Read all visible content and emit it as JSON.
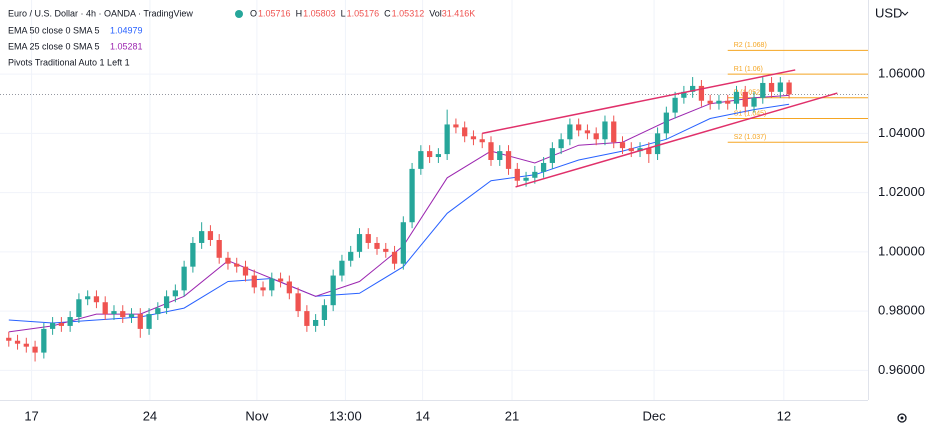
{
  "chart_data": {
    "type": "candlestick",
    "title": "Euro / U.S. Dollar · 4h · OANDA · TradingView",
    "ohlc_labels": [
      "O",
      "H",
      "L",
      "C"
    ],
    "volume_label": "Vol",
    "volume": "31.416K",
    "currency": "USD",
    "up_color": "#26a69a",
    "down_color": "#ef5350",
    "open": [
      0.971,
      0.97,
      0.969,
      0.968,
      0.966,
      0.974,
      0.976,
      0.975,
      0.978,
      0.984,
      0.985,
      0.983,
      0.979,
      0.98,
      0.978,
      0.979,
      0.974,
      0.979,
      0.981,
      0.985,
      0.987,
      0.995,
      1.003,
      1.007,
      1.004,
      0.998,
      0.996,
      0.995,
      0.992,
      0.988,
      0.987,
      0.991,
      0.99,
      0.986,
      0.98,
      0.975,
      0.977,
      0.982,
      0.992,
      0.997,
      1.0,
      1.006,
      1.003,
      1.001,
      1.0,
      0.996,
      1.01,
      1.028,
      1.034,
      1.032,
      1.033,
      1.043,
      1.042,
      1.039,
      1.038,
      1.037,
      1.031,
      1.034,
      1.028,
      1.024,
      1.025,
      1.027,
      1.03,
      1.035,
      1.038,
      1.043,
      1.041,
      1.04,
      1.038,
      1.044,
      1.037,
      1.035,
      1.034,
      1.035,
      1.033,
      1.04,
      1.047,
      1.052,
      1.054,
      1.056,
      1.051,
      1.05,
      1.051,
      1.05,
      1.054,
      1.049,
      1.052,
      1.057,
      1.054,
      1.05716
    ],
    "high": [
      0.973,
      0.972,
      0.971,
      0.97,
      0.976,
      0.978,
      0.978,
      0.98,
      0.986,
      0.987,
      0.987,
      0.985,
      0.982,
      0.982,
      0.981,
      0.981,
      0.981,
      0.983,
      0.987,
      0.989,
      0.997,
      1.005,
      1.01,
      1.009,
      1.006,
      1.0,
      0.998,
      0.997,
      0.994,
      0.99,
      0.993,
      0.993,
      0.992,
      0.988,
      0.982,
      0.979,
      0.984,
      0.994,
      0.999,
      1.002,
      1.008,
      1.008,
      1.005,
      1.003,
      1.002,
      1.012,
      1.03,
      1.036,
      1.036,
      1.035,
      1.048,
      1.045,
      1.044,
      1.041,
      1.04,
      1.039,
      1.036,
      1.036,
      1.03,
      1.027,
      1.029,
      1.032,
      1.037,
      1.04,
      1.045,
      1.045,
      1.043,
      1.042,
      1.046,
      1.046,
      1.039,
      1.037,
      1.037,
      1.037,
      1.042,
      1.049,
      1.054,
      1.056,
      1.059,
      1.058,
      1.053,
      1.053,
      1.053,
      1.056,
      1.056,
      1.054,
      1.059,
      1.059,
      1.059,
      1.05803
    ],
    "low": [
      0.968,
      0.967,
      0.966,
      0.963,
      0.964,
      0.972,
      0.973,
      0.973,
      0.976,
      0.982,
      0.981,
      0.977,
      0.977,
      0.976,
      0.976,
      0.971,
      0.972,
      0.977,
      0.979,
      0.983,
      0.985,
      0.993,
      1.001,
      1.002,
      0.996,
      0.994,
      0.993,
      0.99,
      0.986,
      0.985,
      0.985,
      0.988,
      0.984,
      0.978,
      0.973,
      0.973,
      0.975,
      0.98,
      0.99,
      0.995,
      0.998,
      1.001,
      0.999,
      0.998,
      0.994,
      0.994,
      1.008,
      1.026,
      1.03,
      1.03,
      1.031,
      1.04,
      1.037,
      1.036,
      1.035,
      1.029,
      1.029,
      1.026,
      1.022,
      1.022,
      1.023,
      1.025,
      1.028,
      1.033,
      1.036,
      1.039,
      1.038,
      1.036,
      1.036,
      1.035,
      1.033,
      1.032,
      1.032,
      1.03,
      1.031,
      1.038,
      1.045,
      1.05,
      1.052,
      1.049,
      1.048,
      1.048,
      1.048,
      1.048,
      1.047,
      1.047,
      1.05,
      1.052,
      1.052,
      1.05176
    ],
    "close": [
      0.97,
      0.969,
      0.968,
      0.966,
      0.974,
      0.976,
      0.975,
      0.978,
      0.984,
      0.985,
      0.983,
      0.979,
      0.98,
      0.978,
      0.979,
      0.974,
      0.979,
      0.981,
      0.985,
      0.987,
      0.995,
      1.003,
      1.007,
      1.004,
      0.998,
      0.996,
      0.995,
      0.992,
      0.988,
      0.987,
      0.991,
      0.99,
      0.986,
      0.98,
      0.975,
      0.977,
      0.982,
      0.992,
      0.997,
      1.0,
      1.006,
      1.003,
      1.001,
      1.0,
      0.996,
      1.01,
      1.028,
      1.034,
      1.032,
      1.033,
      1.043,
      1.042,
      1.039,
      1.038,
      1.037,
      1.031,
      1.034,
      1.028,
      1.024,
      1.025,
      1.027,
      1.03,
      1.035,
      1.038,
      1.043,
      1.041,
      1.04,
      1.038,
      1.044,
      1.037,
      1.035,
      1.034,
      1.035,
      1.033,
      1.04,
      1.047,
      1.052,
      1.054,
      1.056,
      1.051,
      1.05,
      1.051,
      1.05,
      1.054,
      1.049,
      1.052,
      1.057,
      1.054,
      1.05716,
      1.05312
    ],
    "series": [
      {
        "name": "EMA 50 close 0 SMA 5",
        "color": "#2962ff",
        "x": [
          0,
          5,
          10,
          15,
          20,
          25,
          30,
          35,
          40,
          45,
          50,
          55,
          60,
          65,
          70,
          75,
          80,
          85,
          89
        ],
        "values": [
          0.977,
          0.976,
          0.977,
          0.978,
          0.981,
          0.99,
          0.991,
          0.985,
          0.986,
          0.995,
          1.013,
          1.024,
          1.026,
          1.031,
          1.034,
          1.038,
          1.045,
          1.048,
          1.04979
        ]
      },
      {
        "name": "EMA 25 close 0 SMA 5",
        "color": "#9c27b0",
        "x": [
          0,
          5,
          10,
          15,
          20,
          25,
          30,
          35,
          40,
          45,
          50,
          55,
          60,
          65,
          70,
          75,
          80,
          85,
          89
        ],
        "values": [
          0.973,
          0.975,
          0.979,
          0.979,
          0.985,
          0.997,
          0.991,
          0.985,
          0.99,
          1.002,
          1.025,
          1.034,
          1.03,
          1.036,
          1.037,
          1.044,
          1.05,
          1.052,
          1.05281
        ]
      }
    ],
    "pivots_title": "Pivots Traditional Auto 1 Left 1",
    "pivot_color": "#f5a623",
    "pivot_start": 82,
    "pivots": [
      {
        "label": "R2 (1.068)",
        "value": 1.068
      },
      {
        "label": "R1 (1.06)",
        "value": 1.06
      },
      {
        "label": "P (1.052)",
        "value": 1.052
      },
      {
        "label": "S1 (1.045)",
        "value": 1.045
      },
      {
        "label": "S2 (1.037)",
        "value": 1.037
      }
    ],
    "trendline_color": "#e0306a",
    "trendlines": [
      {
        "x": [
          54,
          89.7
        ],
        "y": [
          1.04,
          1.0614
        ]
      },
      {
        "x": [
          57.8,
          94.5
        ],
        "y": [
          1.0219,
          1.0536
        ]
      }
    ],
    "xlim": [
      -1,
      98
    ],
    "ylim": [
      0.95,
      1.085
    ],
    "xticks": [
      {
        "value": 2.6,
        "label": "17"
      },
      {
        "value": 16.1,
        "label": "24"
      },
      {
        "value": 28.3,
        "label": "Nov"
      },
      {
        "value": 38.4,
        "label": "13:00"
      },
      {
        "value": 47.2,
        "label": "14"
      },
      {
        "value": 57.4,
        "label": "21"
      },
      {
        "value": 73.6,
        "label": "Dec"
      },
      {
        "value": 88.4,
        "label": "12"
      }
    ],
    "yticks": [
      {
        "value": 0.96,
        "label": "0.96000"
      },
      {
        "value": 0.98,
        "label": "0.98000"
      },
      {
        "value": 1.0,
        "label": "1.00000"
      },
      {
        "value": 1.02,
        "label": "1.02000"
      },
      {
        "value": 1.04,
        "label": "1.04000"
      },
      {
        "value": 1.06,
        "label": "1.06000"
      }
    ],
    "grid": true
  }
}
